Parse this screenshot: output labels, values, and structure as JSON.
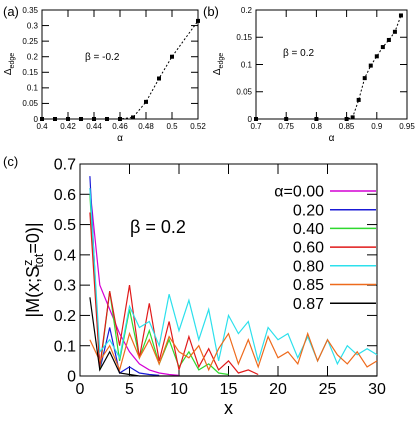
{
  "chart_data": [
    {
      "type": "line",
      "panel_label": "(a)",
      "annotation": "β = -0.2",
      "xlabel": "α",
      "ylabel_main": "Δ",
      "ylabel_sub": "edge",
      "xlim": [
        0.4,
        0.52
      ],
      "ylim": [
        0,
        0.35
      ],
      "xticks": [
        0.4,
        0.42,
        0.44,
        0.46,
        0.48,
        0.5,
        0.52
      ],
      "xtick_labels": [
        "0.4",
        "0.42",
        "0.44",
        "0.46",
        "0.48",
        "0.5",
        "0.52"
      ],
      "yticks": [
        0,
        0.05,
        0.1,
        0.15,
        0.2,
        0.25,
        0.3,
        0.35
      ],
      "ytick_labels": [
        "0",
        "0.05",
        "0.1",
        "0.15",
        "0.2",
        "0.25",
        "0.3",
        "0.35"
      ],
      "grid": false,
      "series": [
        {
          "x": [
            0.4,
            0.41,
            0.42,
            0.43,
            0.44,
            0.45,
            0.46,
            0.47,
            0.48,
            0.49,
            0.5,
            0.52
          ],
          "y": [
            0,
            0,
            0,
            0,
            0,
            0,
            0,
            0.005,
            0.055,
            0.13,
            0.2,
            0.315
          ]
        }
      ]
    },
    {
      "type": "line",
      "panel_label": "(b)",
      "annotation": "β = 0.2",
      "xlabel": "α",
      "ylabel_main": "Δ",
      "ylabel_sub": "edge",
      "xlim": [
        0.7,
        0.95
      ],
      "ylim": [
        0,
        0.2
      ],
      "xticks": [
        0.7,
        0.75,
        0.8,
        0.85,
        0.9,
        0.95
      ],
      "xtick_labels": [
        "0.7",
        "0.75",
        "0.8",
        "0.85",
        "0.9",
        "0.95"
      ],
      "yticks": [
        0,
        0.05,
        0.1,
        0.15,
        0.2
      ],
      "ytick_labels": [
        "0",
        "0.05",
        "0.1",
        "0.15",
        "0.2"
      ],
      "grid": false,
      "series": [
        {
          "x": [
            0.7,
            0.75,
            0.8,
            0.85,
            0.86,
            0.87,
            0.88,
            0.89,
            0.9,
            0.91,
            0.92,
            0.93,
            0.94
          ],
          "y": [
            0,
            0,
            0,
            0,
            0.003,
            0.035,
            0.075,
            0.098,
            0.115,
            0.132,
            0.145,
            0.16,
            0.19
          ]
        }
      ]
    },
    {
      "type": "line",
      "panel_label": "(c)",
      "annotation": "β = 0.2",
      "xlabel": "x",
      "ylabel": "|M(x;S^z_tot=0)|",
      "ylabel_parts": [
        "|M(x;S",
        "z",
        "tot",
        "=0)|"
      ],
      "xlim": [
        0,
        30
      ],
      "ylim": [
        0,
        0.7
      ],
      "xticks": [
        0,
        5,
        10,
        15,
        20,
        25,
        30
      ],
      "xtick_labels": [
        "0",
        "5",
        "10",
        "15",
        "20",
        "25",
        "30"
      ],
      "yticks": [
        0,
        0.1,
        0.2,
        0.3,
        0.4,
        0.5,
        0.6,
        0.7
      ],
      "ytick_labels": [
        "0",
        "0.1",
        "0.2",
        "0.3",
        "0.4",
        "0.5",
        "0.6",
        "0.7"
      ],
      "grid": false,
      "legend_position": "top-right",
      "series": [
        {
          "name": "α=0.00",
          "color": "#d400d4",
          "x": [
            1,
            2,
            3,
            4,
            5,
            6,
            7,
            8,
            9,
            10
          ],
          "y": [
            0.62,
            0.3,
            0.22,
            0.14,
            0.08,
            0.04,
            0.02,
            0.01,
            0.005,
            0.002
          ]
        },
        {
          "name": "0.20",
          "color": "#1a1ad6",
          "x": [
            1,
            2,
            3,
            4,
            5,
            6,
            7,
            8
          ],
          "y": [
            0.66,
            0.02,
            0.16,
            0.01,
            0.03,
            0.01,
            0.005,
            0.002
          ]
        },
        {
          "name": "0.40",
          "color": "#2ed82e",
          "x": [
            1,
            2,
            3,
            4,
            5,
            6,
            7,
            8,
            9,
            10,
            11,
            12,
            13,
            14,
            15
          ],
          "y": [
            0.6,
            0.02,
            0.28,
            0.05,
            0.22,
            0.06,
            0.15,
            0.04,
            0.12,
            0.03,
            0.08,
            0.02,
            0.04,
            0.01,
            0.005
          ]
        },
        {
          "name": "0.60",
          "color": "#e01a1a",
          "x": [
            1,
            2,
            3,
            4,
            5,
            6,
            7,
            8,
            9,
            10,
            11,
            12,
            13,
            14,
            15,
            16,
            17,
            18
          ],
          "y": [
            0.54,
            0.03,
            0.28,
            0.1,
            0.3,
            0.06,
            0.24,
            0.05,
            0.18,
            0.02,
            0.13,
            0.03,
            0.09,
            0.02,
            0.05,
            0.01,
            0.02,
            0.005
          ]
        },
        {
          "name": "0.80",
          "color": "#2ce0ec",
          "x": [
            1,
            2,
            3,
            4,
            5,
            6,
            7,
            8,
            9,
            10,
            11,
            12,
            13,
            14,
            15,
            16,
            17,
            18,
            19,
            20,
            21,
            22,
            23,
            24,
            25,
            26,
            27,
            28,
            29,
            30
          ],
          "y": [
            0.62,
            0.08,
            0.12,
            0.06,
            0.23,
            0.16,
            0.18,
            0.1,
            0.27,
            0.15,
            0.25,
            0.12,
            0.22,
            0.05,
            0.2,
            0.14,
            0.18,
            0.05,
            0.16,
            0.12,
            0.14,
            0.06,
            0.13,
            0.05,
            0.12,
            0.04,
            0.1,
            0.07,
            0.09,
            0.07
          ]
        },
        {
          "name": "0.85",
          "color": "#ee6a1c",
          "x": [
            1,
            2,
            3,
            4,
            5,
            6,
            7,
            8,
            9,
            10,
            11,
            12,
            13,
            14,
            15,
            16,
            17,
            18,
            19,
            20,
            21,
            22,
            23,
            24,
            25,
            26,
            27,
            28,
            29,
            30
          ],
          "y": [
            0.12,
            0.05,
            0.1,
            0.02,
            0.14,
            0.06,
            0.12,
            0.04,
            0.13,
            0.08,
            0.06,
            0.1,
            0.02,
            0.09,
            0.14,
            0.04,
            0.12,
            0.03,
            0.13,
            0.06,
            0.08,
            0.04,
            0.14,
            0.05,
            0.12,
            0.07,
            0.04,
            0.08,
            0.03,
            0.05
          ]
        },
        {
          "name": "0.87",
          "color": "#000000",
          "x": [
            1,
            2,
            3,
            4,
            5,
            6,
            7,
            8,
            9,
            10,
            11,
            12,
            13,
            14,
            15,
            16,
            17,
            18,
            19,
            20,
            21,
            22,
            23,
            24,
            25,
            26,
            27,
            28,
            29,
            30
          ],
          "y": [
            0.26,
            0.02,
            0.08,
            0.01,
            0.005,
            0,
            0,
            0,
            0,
            0,
            0,
            0,
            0,
            0,
            0,
            0,
            0,
            0,
            0,
            0,
            0,
            0,
            0,
            0,
            0,
            0,
            0,
            0,
            0,
            0
          ]
        }
      ]
    }
  ]
}
